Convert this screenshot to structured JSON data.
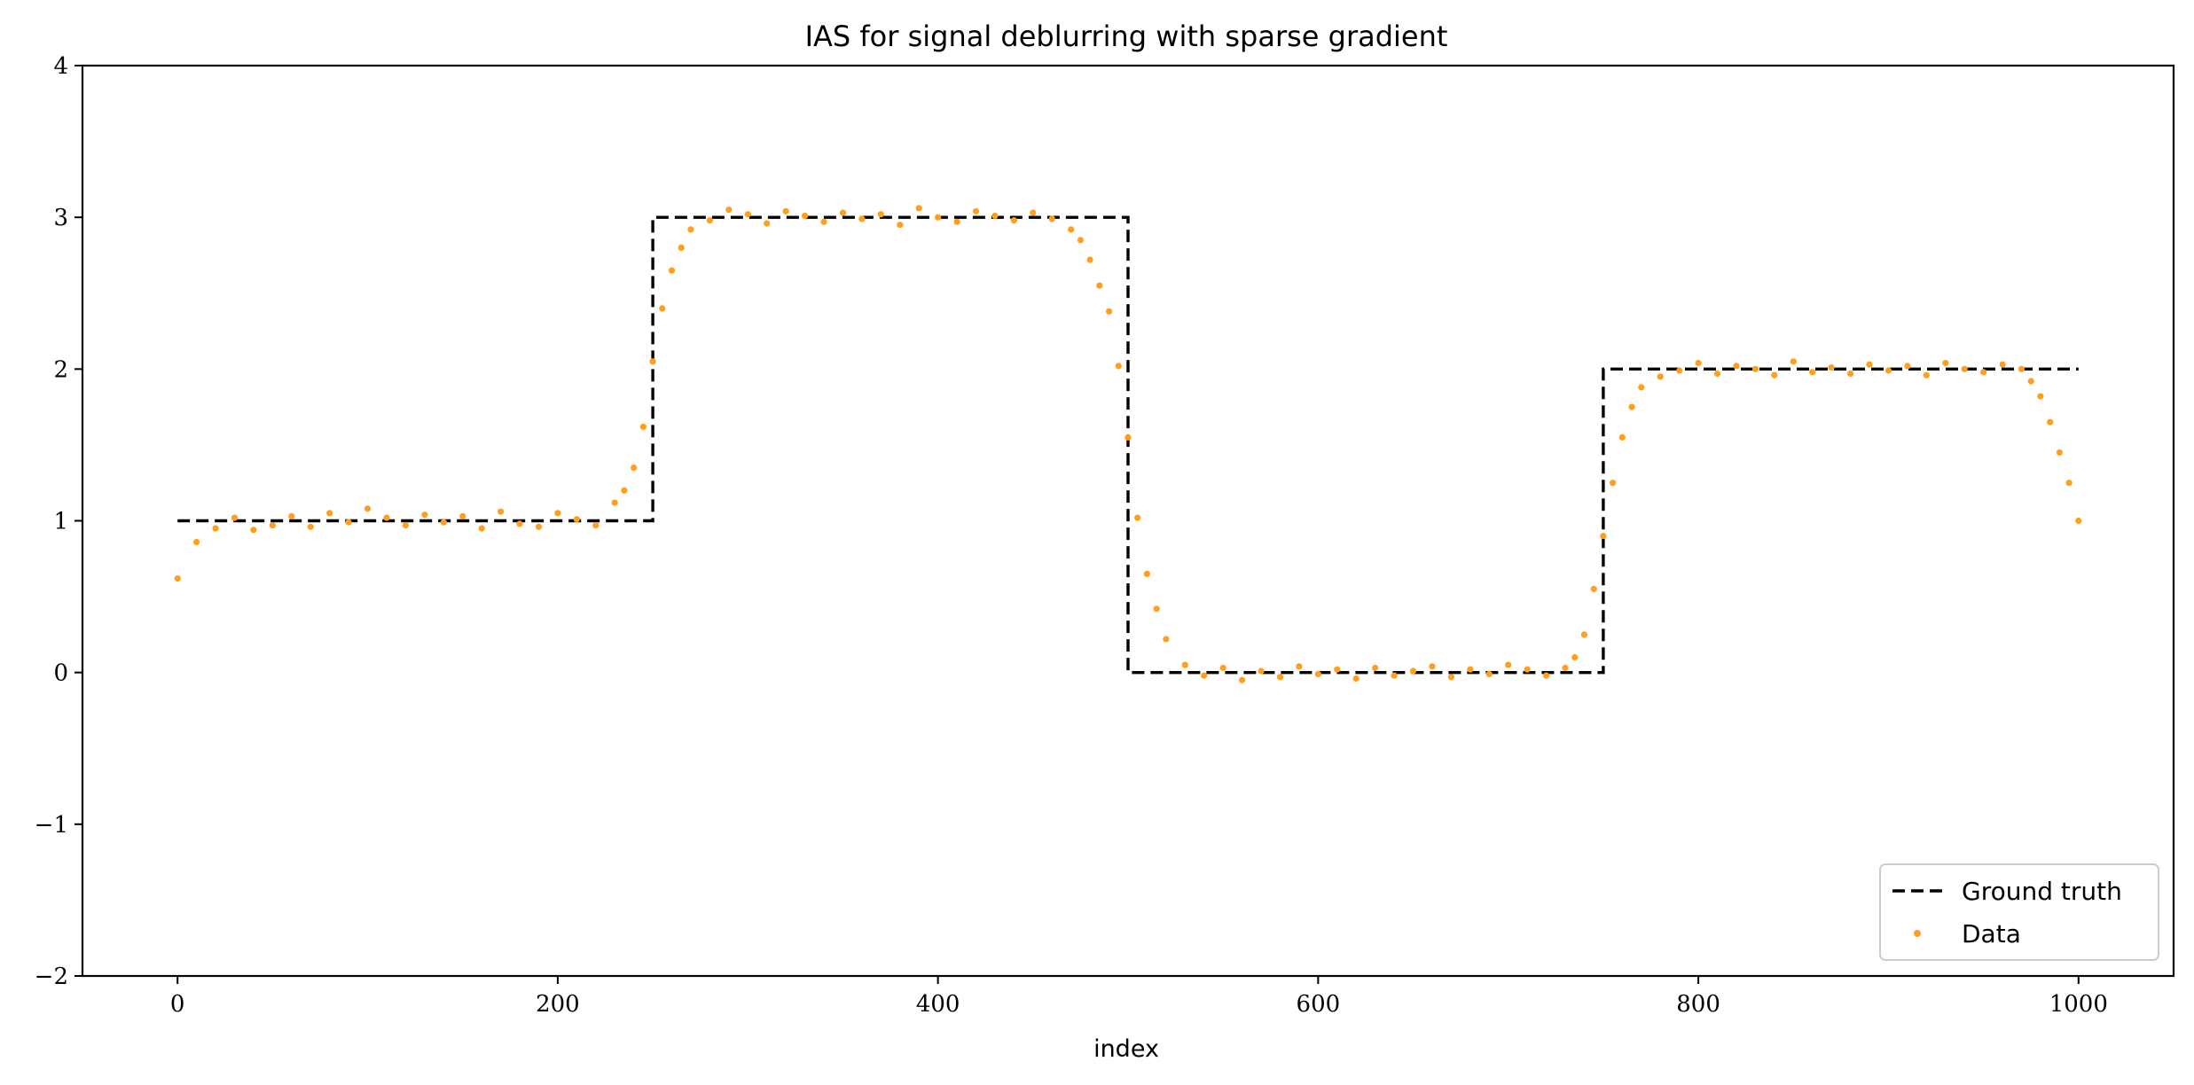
{
  "chart_data": {
    "type": "line",
    "title": "IAS for signal deblurring with sparse gradient",
    "xlabel": "index",
    "ylabel": "",
    "xlim": [
      -50,
      1050
    ],
    "ylim": [
      -2,
      4
    ],
    "x_ticks": [
      0,
      200,
      400,
      600,
      800,
      1000
    ],
    "y_ticks": [
      -2,
      -1,
      0,
      1,
      2,
      3,
      4
    ],
    "x_tick_labels": [
      "0",
      "200",
      "400",
      "600",
      "800",
      "1000"
    ],
    "y_tick_labels": [
      "−2",
      "−1",
      "0",
      "1",
      "2",
      "3",
      "4"
    ],
    "grid": false,
    "legend_position": "lower right",
    "series": [
      {
        "name": "Ground truth",
        "style": "dashed",
        "color": "#000000",
        "x": [
          0,
          250,
          250,
          500,
          500,
          750,
          750,
          1000
        ],
        "y": [
          1,
          1,
          3,
          3,
          0,
          0,
          2,
          2
        ]
      },
      {
        "name": "Data",
        "style": "points",
        "color": "#ff9f1c",
        "x": [
          0,
          10,
          20,
          30,
          40,
          50,
          60,
          70,
          80,
          90,
          100,
          110,
          120,
          130,
          140,
          150,
          160,
          170,
          180,
          190,
          200,
          210,
          220,
          230,
          235,
          240,
          245,
          250,
          255,
          260,
          265,
          270,
          280,
          290,
          300,
          310,
          320,
          330,
          340,
          350,
          360,
          370,
          380,
          390,
          400,
          410,
          420,
          430,
          440,
          450,
          460,
          470,
          475,
          480,
          485,
          490,
          495,
          500,
          505,
          510,
          515,
          520,
          530,
          540,
          550,
          560,
          570,
          580,
          590,
          600,
          610,
          620,
          630,
          640,
          650,
          660,
          670,
          680,
          690,
          700,
          710,
          720,
          730,
          735,
          740,
          745,
          750,
          755,
          760,
          765,
          770,
          780,
          790,
          800,
          810,
          820,
          830,
          840,
          850,
          860,
          870,
          880,
          890,
          900,
          910,
          920,
          930,
          940,
          950,
          960,
          970,
          975,
          980,
          985,
          990,
          995,
          1000
        ],
        "y": [
          0.62,
          0.86,
          0.95,
          1.02,
          0.94,
          0.97,
          1.03,
          0.96,
          1.05,
          0.99,
          1.08,
          1.02,
          0.97,
          1.04,
          0.99,
          1.03,
          0.95,
          1.06,
          0.98,
          0.96,
          1.05,
          1.01,
          0.97,
          1.12,
          1.2,
          1.35,
          1.62,
          2.05,
          2.4,
          2.65,
          2.8,
          2.92,
          2.98,
          3.05,
          3.02,
          2.96,
          3.04,
          3.01,
          2.97,
          3.03,
          2.99,
          3.02,
          2.95,
          3.06,
          3.0,
          2.97,
          3.04,
          3.01,
          2.98,
          3.03,
          2.99,
          2.92,
          2.85,
          2.72,
          2.55,
          2.38,
          2.02,
          1.55,
          1.02,
          0.65,
          0.42,
          0.22,
          0.05,
          -0.02,
          0.03,
          -0.05,
          0.01,
          -0.03,
          0.04,
          -0.01,
          0.02,
          -0.04,
          0.03,
          -0.02,
          0.01,
          0.04,
          -0.03,
          0.02,
          -0.01,
          0.05,
          0.02,
          -0.02,
          0.03,
          0.1,
          0.25,
          0.55,
          0.9,
          1.25,
          1.55,
          1.75,
          1.88,
          1.95,
          1.99,
          2.04,
          1.97,
          2.02,
          2.0,
          1.96,
          2.05,
          1.98,
          2.01,
          1.97,
          2.03,
          1.99,
          2.02,
          1.96,
          2.04,
          2.0,
          1.98,
          2.03,
          2.0,
          1.92,
          1.82,
          1.65,
          1.45,
          1.25,
          1.0
        ]
      }
    ]
  }
}
